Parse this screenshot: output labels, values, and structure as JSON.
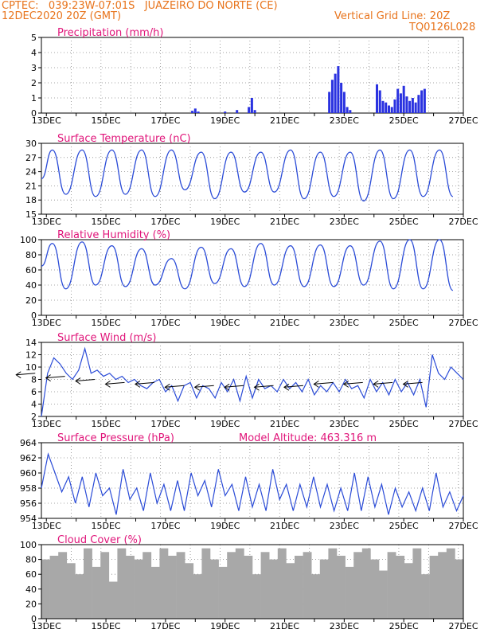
{
  "header": {
    "line1_left": "CPTEC:   039:23W-07:01S   JUAZEIRO DO NORTE (CE)",
    "line2_left": "12DEC2020 20Z (GMT)",
    "line2_right": "Vertical Grid Line: 20Z",
    "line3_right": "TQ0126L028",
    "model_altitude": "Model Altitude: 463.316 m"
  },
  "colors": {
    "header": "#e8741c",
    "title": "#e0157a",
    "line": "#2a4bd7",
    "bar": "#2a32e0",
    "cloud": "#a8a8a8"
  },
  "x_ticks": [
    "13DEC",
    "15DEC",
    "17DEC",
    "19DEC",
    "21DEC",
    "23DEC",
    "25DEC",
    "27DEC"
  ],
  "chart_data": [
    {
      "type": "bar",
      "title": "Precipitation (mm/h)",
      "ylim": [
        0,
        5
      ],
      "yticks": [
        "0",
        "1",
        "2",
        "3",
        "4",
        "5"
      ],
      "x": [
        17.9,
        18.0,
        18.1,
        19.0,
        19.4,
        19.8,
        19.9,
        20.0,
        22.5,
        22.6,
        22.7,
        22.8,
        22.9,
        23.0,
        23.1,
        23.2,
        24.1,
        24.2,
        24.3,
        24.4,
        24.5,
        24.6,
        24.7,
        24.8,
        24.9,
        25.0,
        25.1,
        25.2,
        25.3,
        25.4,
        25.5,
        25.6,
        25.7
      ],
      "values": [
        0.15,
        0.3,
        0.1,
        0.1,
        0.2,
        0.4,
        1.0,
        0.2,
        1.4,
        2.2,
        2.6,
        3.1,
        2.0,
        1.4,
        0.4,
        0.2,
        1.9,
        1.5,
        0.8,
        0.7,
        0.5,
        0.4,
        0.9,
        1.6,
        1.3,
        1.8,
        1.1,
        0.8,
        1.0,
        0.7,
        1.2,
        1.5,
        1.6
      ]
    },
    {
      "type": "line",
      "title": "Surface Temperature (nC)",
      "ylim": [
        15,
        31
      ],
      "yticks": [
        "15",
        "18",
        "21",
        "24",
        "27",
        "30"
      ],
      "daily_max": [
        29.5,
        29.5,
        29.5,
        29.5,
        29.5,
        29.0,
        29.0,
        29.0,
        29.5,
        29.0,
        29.0,
        29.5,
        29.5,
        29.5,
        29.5
      ],
      "daily_min": [
        16.5,
        19.5,
        19.0,
        19.5,
        19.0,
        20.5,
        18.5,
        20.0,
        20.0,
        18.5,
        19.0,
        18.0,
        18.5,
        19.0,
        19.0
      ]
    },
    {
      "type": "line",
      "title": "Relative Humidity (%)",
      "ylim": [
        0,
        100
      ],
      "yticks": [
        "0",
        "20",
        "40",
        "60",
        "80",
        "100"
      ],
      "daily_max": [
        95,
        97,
        92,
        88,
        75,
        90,
        88,
        95,
        92,
        93,
        92,
        98,
        100,
        100,
        100
      ],
      "daily_min": [
        35,
        35,
        40,
        38,
        40,
        35,
        42,
        38,
        40,
        38,
        38,
        40,
        35,
        35,
        33
      ]
    },
    {
      "type": "line",
      "title": "Surface Wind (m/s)",
      "ylim": [
        2,
        14
      ],
      "yticks": [
        "2",
        "4",
        "6",
        "8",
        "10",
        "12",
        "14"
      ],
      "values": [
        2.0,
        9.0,
        11.5,
        10.5,
        9.0,
        8.0,
        9.5,
        13.0,
        9.0,
        9.5,
        8.5,
        9.0,
        8.0,
        8.5,
        7.5,
        8.0,
        7.0,
        6.5,
        7.5,
        8.0,
        6.0,
        7.0,
        4.5,
        7.0,
        7.5,
        5.0,
        7.0,
        6.5,
        5.0,
        7.5,
        6.0,
        8.0,
        4.5,
        8.5,
        5.0,
        8.0,
        6.5,
        7.0,
        6.0,
        8.0,
        6.5,
        7.5,
        6.0,
        8.0,
        5.5,
        7.0,
        6.0,
        7.5,
        6.0,
        8.0,
        6.5,
        7.0,
        5.0,
        8.0,
        6.0,
        7.5,
        5.5,
        8.0,
        6.0,
        7.5,
        5.5,
        8.0,
        3.5,
        12.0,
        9.0,
        8.0,
        10.0,
        9.0,
        8.0
      ],
      "arrows": [
        9.0,
        8.5,
        8.0,
        7.5,
        7.5,
        7.0,
        7.0,
        7.0,
        7.0,
        7.0,
        7.5,
        7.5,
        7.5,
        7.5
      ]
    },
    {
      "type": "line",
      "title": "Surface Pressure (hPa)",
      "ylim": [
        954,
        964
      ],
      "yticks": [
        "954",
        "956",
        "958",
        "960",
        "962",
        "964"
      ],
      "values": [
        958,
        962.5,
        960,
        957.5,
        959.5,
        956,
        959.5,
        955.5,
        960,
        957,
        958,
        954.5,
        960.5,
        956.5,
        958,
        955,
        960,
        956,
        958.5,
        955,
        959,
        955,
        960,
        957,
        959,
        955.5,
        960.5,
        957,
        958.5,
        955,
        959.5,
        955.5,
        958.5,
        955,
        960.5,
        956.5,
        958.5,
        955,
        958.5,
        955.5,
        959.5,
        955.5,
        958.5,
        955,
        958,
        955,
        960,
        955,
        959.5,
        955.5,
        958.5,
        954.5,
        958,
        955.5,
        957.5,
        955,
        958,
        955,
        960,
        955.5,
        957.5,
        955,
        957
      ]
    },
    {
      "type": "bar",
      "title": "Cloud Cover (%)",
      "ylim": [
        0,
        100
      ],
      "yticks": [
        "0",
        "20",
        "40",
        "60",
        "80",
        "100"
      ],
      "values": [
        80,
        85,
        90,
        75,
        60,
        95,
        70,
        90,
        50,
        95,
        85,
        80,
        90,
        70,
        95,
        85,
        90,
        75,
        60,
        95,
        80,
        70,
        90,
        95,
        85,
        60,
        90,
        80,
        95,
        75,
        85,
        90,
        60,
        80,
        95,
        85,
        70,
        90,
        95,
        80,
        65,
        90,
        85,
        75,
        95,
        60,
        85,
        90,
        95,
        80
      ]
    }
  ]
}
